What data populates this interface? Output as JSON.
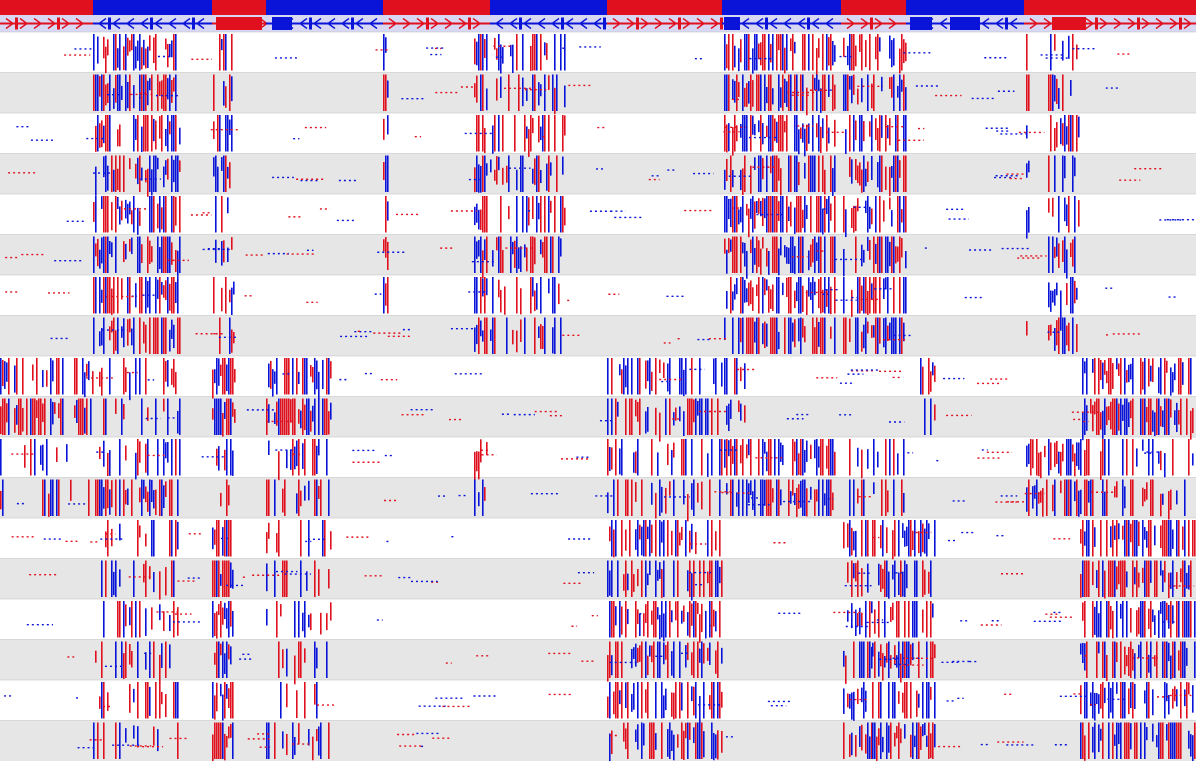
{
  "colors": {
    "forward": "#e0101e",
    "reverse": "#0a14d8",
    "track_bg": "#d8d8f4",
    "row_alt": "#e6e6e6",
    "row_plain": "#ffffff",
    "row_divider": "#bdbdbd"
  },
  "annotation_bands": [
    {
      "strand": "forward",
      "start": 0,
      "end": 93
    },
    {
      "strand": "reverse",
      "start": 93,
      "end": 212
    },
    {
      "strand": "forward",
      "start": 212,
      "end": 266
    },
    {
      "strand": "reverse",
      "start": 266,
      "end": 383
    },
    {
      "strand": "forward",
      "start": 383,
      "end": 490
    },
    {
      "strand": "reverse",
      "start": 490,
      "end": 607
    },
    {
      "strand": "forward",
      "start": 607,
      "end": 722
    },
    {
      "strand": "reverse",
      "start": 722,
      "end": 841
    },
    {
      "strand": "forward",
      "start": 841,
      "end": 906
    },
    {
      "strand": "reverse",
      "start": 906,
      "end": 1024
    },
    {
      "strand": "forward",
      "start": 1024,
      "end": 1196
    }
  ],
  "exon_blocks": [
    {
      "start": 216,
      "end": 262
    },
    {
      "start": 272,
      "end": 292
    },
    {
      "start": 910,
      "end": 932
    },
    {
      "start": 950,
      "end": 980
    },
    {
      "start": 1052,
      "end": 1086
    },
    {
      "start": 724,
      "end": 740
    }
  ],
  "read_rows": [
    {
      "group": "A"
    },
    {
      "group": "A"
    },
    {
      "group": "A"
    },
    {
      "group": "A"
    },
    {
      "group": "A"
    },
    {
      "group": "A"
    },
    {
      "group": "A"
    },
    {
      "group": "A"
    },
    {
      "group": "B"
    },
    {
      "group": "B"
    },
    {
      "group": "C"
    },
    {
      "group": "C"
    },
    {
      "group": "D"
    },
    {
      "group": "D"
    },
    {
      "group": "D"
    },
    {
      "group": "D"
    },
    {
      "group": "D"
    },
    {
      "group": "D"
    }
  ],
  "dense_regions": {
    "A": [
      [
        93,
        180,
        0.7
      ],
      [
        213,
        235,
        0.4
      ],
      [
        383,
        388,
        0.8
      ],
      [
        474,
        488,
        0.8
      ],
      [
        490,
        565,
        0.5
      ],
      [
        724,
        836,
        0.75
      ],
      [
        843,
        906,
        0.6
      ],
      [
        1026,
        1030,
        0.6
      ],
      [
        1048,
        1080,
        0.7
      ]
    ],
    "B": [
      [
        0,
        93,
        0.6
      ],
      [
        93,
        180,
        0.35
      ],
      [
        212,
        236,
        0.95
      ],
      [
        266,
        332,
        0.75
      ],
      [
        607,
        722,
        0.5
      ],
      [
        724,
        745,
        0.6
      ],
      [
        920,
        936,
        0.6
      ],
      [
        1080,
        1196,
        0.7
      ]
    ],
    "C": [
      [
        0,
        90,
        0.3
      ],
      [
        93,
        180,
        0.5
      ],
      [
        214,
        236,
        0.5
      ],
      [
        266,
        330,
        0.4
      ],
      [
        474,
        488,
        0.6
      ],
      [
        607,
        722,
        0.35
      ],
      [
        724,
        836,
        0.75
      ],
      [
        843,
        906,
        0.4
      ],
      [
        1026,
        1090,
        0.7
      ],
      [
        1090,
        1196,
        0.35
      ]
    ],
    "D": [
      [
        93,
        180,
        0.35
      ],
      [
        212,
        234,
        0.95
      ],
      [
        266,
        332,
        0.35
      ],
      [
        607,
        722,
        0.6
      ],
      [
        843,
        872,
        0.6
      ],
      [
        872,
        906,
        0.7
      ],
      [
        906,
        936,
        0.7
      ],
      [
        1080,
        1196,
        0.7
      ]
    ]
  }
}
